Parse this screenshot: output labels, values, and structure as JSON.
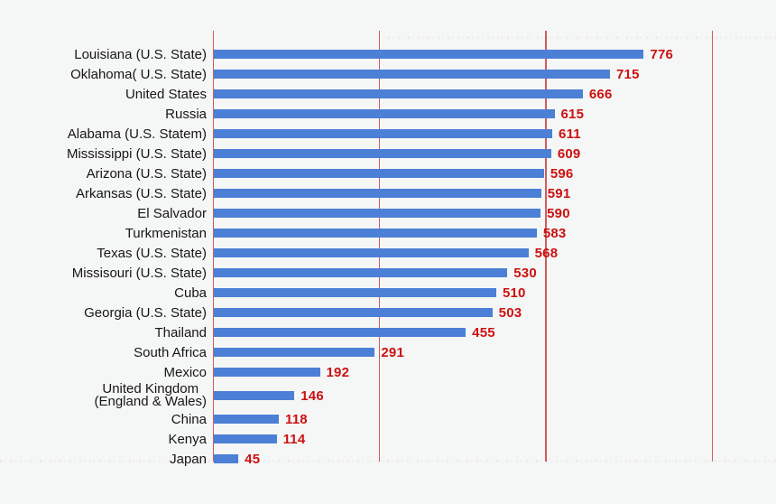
{
  "chart_data": {
    "type": "bar",
    "orientation": "horizontal",
    "title": "",
    "xlabel": "",
    "ylabel": "",
    "legend": "none",
    "grid": true,
    "xlim": [
      0,
      1016
    ],
    "gridlines": [
      0,
      300,
      600,
      900
    ],
    "categories": [
      "Louisiana (U.S. State)",
      "Oklahoma( U.S. State)",
      "United States",
      "Russia",
      "Alabama (U.S. Statem)",
      "Mississippi (U.S. State)",
      "Arizona (U.S. State)",
      "Arkansas (U.S. State)",
      "El Salvador",
      "Turkmenistan",
      "Texas (U.S. State)",
      "Missisouri (U.S. State)",
      "Cuba",
      "Georgia (U.S. State)",
      "Thailand",
      "South Africa",
      "Mexico",
      "United Kingdom\n(England & Wales)",
      "China",
      "Kenya",
      "Japan"
    ],
    "values": [
      776,
      715,
      666,
      615,
      611,
      609,
      596,
      591,
      590,
      583,
      568,
      530,
      510,
      503,
      455,
      291,
      192,
      146,
      118,
      114,
      45
    ],
    "colors": {
      "bar": "#4c80d6",
      "value_label": "#cc1111",
      "category_label": "#161616",
      "gridline": "#d25c5c",
      "background": "#f5f6f6"
    }
  }
}
